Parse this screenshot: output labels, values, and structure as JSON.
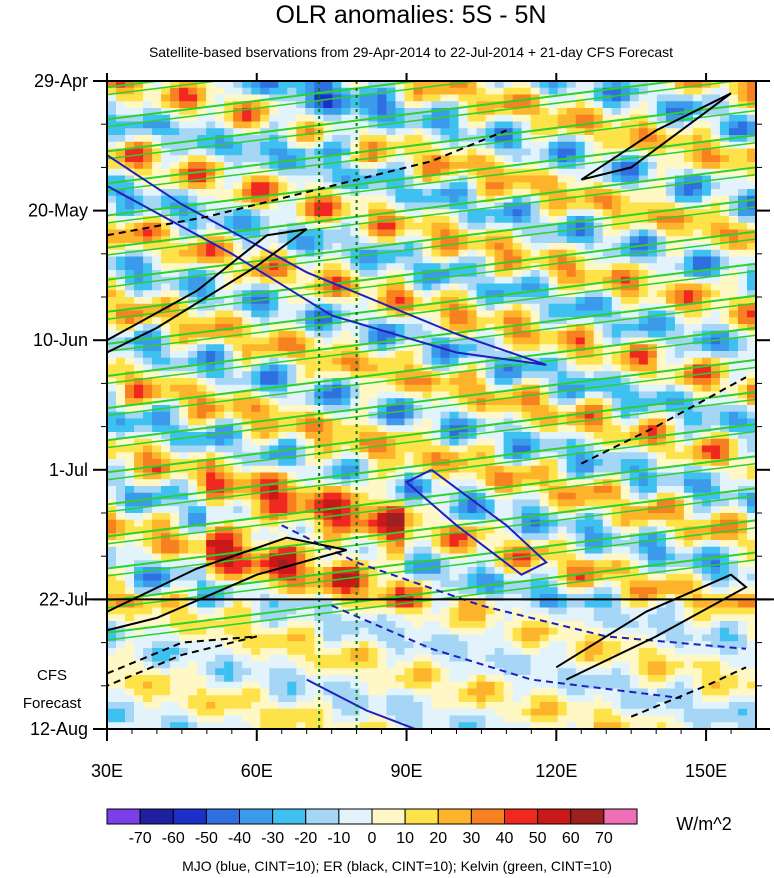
{
  "chart_data": {
    "type": "heatmap",
    "title": "OLR anomalies: 5S - 5N",
    "subtitle": "Satellite-based bservations from 29-Apr-2014 to 22-Jul-2014 + 21-day CFS Forecast",
    "x_axis": {
      "range": [
        30,
        160
      ],
      "ticks": [
        30,
        60,
        90,
        120,
        150
      ],
      "tick_labels": [
        "30E",
        "60E",
        "90E",
        "120E",
        "150E"
      ]
    },
    "y_axis": {
      "range_days": [
        0,
        105
      ],
      "ticks_days": [
        0,
        21,
        42,
        63,
        84,
        105
      ],
      "tick_labels": [
        "29-Apr",
        "20-May",
        "10-Jun",
        "1-Jul",
        "22-Jul",
        "12-Aug"
      ],
      "reversed": false
    },
    "observation_end_day": 84,
    "forecast_label_line1": "CFS",
    "forecast_label_line2": "Forecast",
    "reference_longitudes": [
      72.5,
      80
    ],
    "colorbar": {
      "levels": [
        -70,
        -60,
        -50,
        -40,
        -30,
        -20,
        -10,
        0,
        10,
        20,
        30,
        40,
        50,
        60,
        70
      ],
      "level_labels": [
        "-70",
        "-60",
        "-50",
        "-40",
        "-30",
        "-20",
        "-10",
        "0",
        "10",
        "20",
        "30",
        "40",
        "50",
        "60",
        "70"
      ],
      "colors": [
        "#7a3fe8",
        "#1f1fa0",
        "#1b30c8",
        "#2f6fe0",
        "#3c9aea",
        "#3ec0f0",
        "#a5d6f5",
        "#e2f3fb",
        "#fff8c4",
        "#fde24a",
        "#fdb42a",
        "#f78020",
        "#f02820",
        "#c81818",
        "#9c2020",
        "#f070b8"
      ],
      "units": "W/m^2"
    },
    "legend": "MJO (blue, CINT=10); ER (black, CINT=10); Kelvin (green, CINT=10)",
    "contour_colors": {
      "mjo": "#1f1fc0",
      "er": "#000000",
      "kelvin": "#2ad22a"
    }
  }
}
